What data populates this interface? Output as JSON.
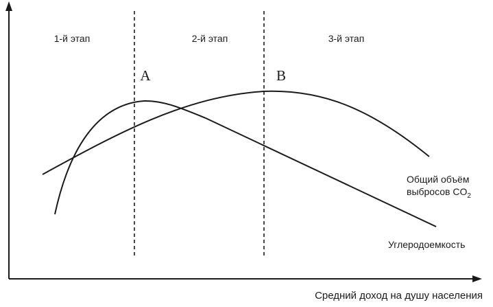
{
  "diagram": {
    "stages": [
      "1-й этап",
      "2-й этап",
      "3-й этап"
    ],
    "points": [
      "A",
      "B"
    ],
    "curves": {
      "total_emissions": {
        "line1": "Общий объём",
        "line2": "выбросов CO",
        "subscript": "2"
      },
      "carbon_intensity": "Углеродоемкость"
    },
    "x_axis_label": "Средний доход на душу населения",
    "colors": {
      "ink": "#1a1a1a",
      "background": "#ffffff"
    }
  }
}
